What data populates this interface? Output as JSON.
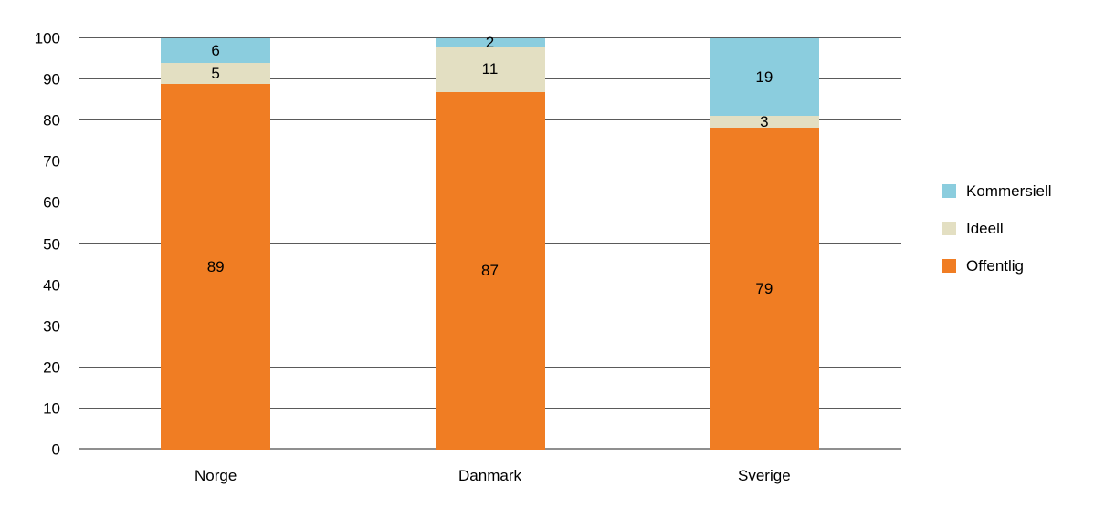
{
  "chart_data": {
    "type": "bar",
    "variant": "stacked-column",
    "categories": [
      "Norge",
      "Danmark",
      "Sverige"
    ],
    "series": [
      {
        "name": "Kommersiell",
        "color": "#8BCDDE",
        "values": [
          6,
          2,
          19
        ]
      },
      {
        "name": "Ideell",
        "color": "#E3DFC2",
        "values": [
          5,
          11,
          3
        ]
      },
      {
        "name": "Offentlig",
        "color": "#F07D23",
        "values": [
          89,
          87,
          79
        ]
      }
    ],
    "stack_order_top_to_bottom": [
      "Kommersiell",
      "Ideell",
      "Offentlig"
    ],
    "legend_order_top_to_bottom": [
      "Kommersiell",
      "Ideell",
      "Offentlig"
    ],
    "ylim": [
      0,
      100
    ],
    "yticks": [
      0,
      10,
      20,
      30,
      40,
      50,
      60,
      70,
      80,
      90,
      100
    ],
    "grid": true,
    "legend_position": "right",
    "bar_value_labels_inside": true
  },
  "colors": {
    "gridline": "#5a5a5a",
    "axis_baseline": "#8f8f8f",
    "text": "#000000",
    "background": "#ffffff"
  }
}
